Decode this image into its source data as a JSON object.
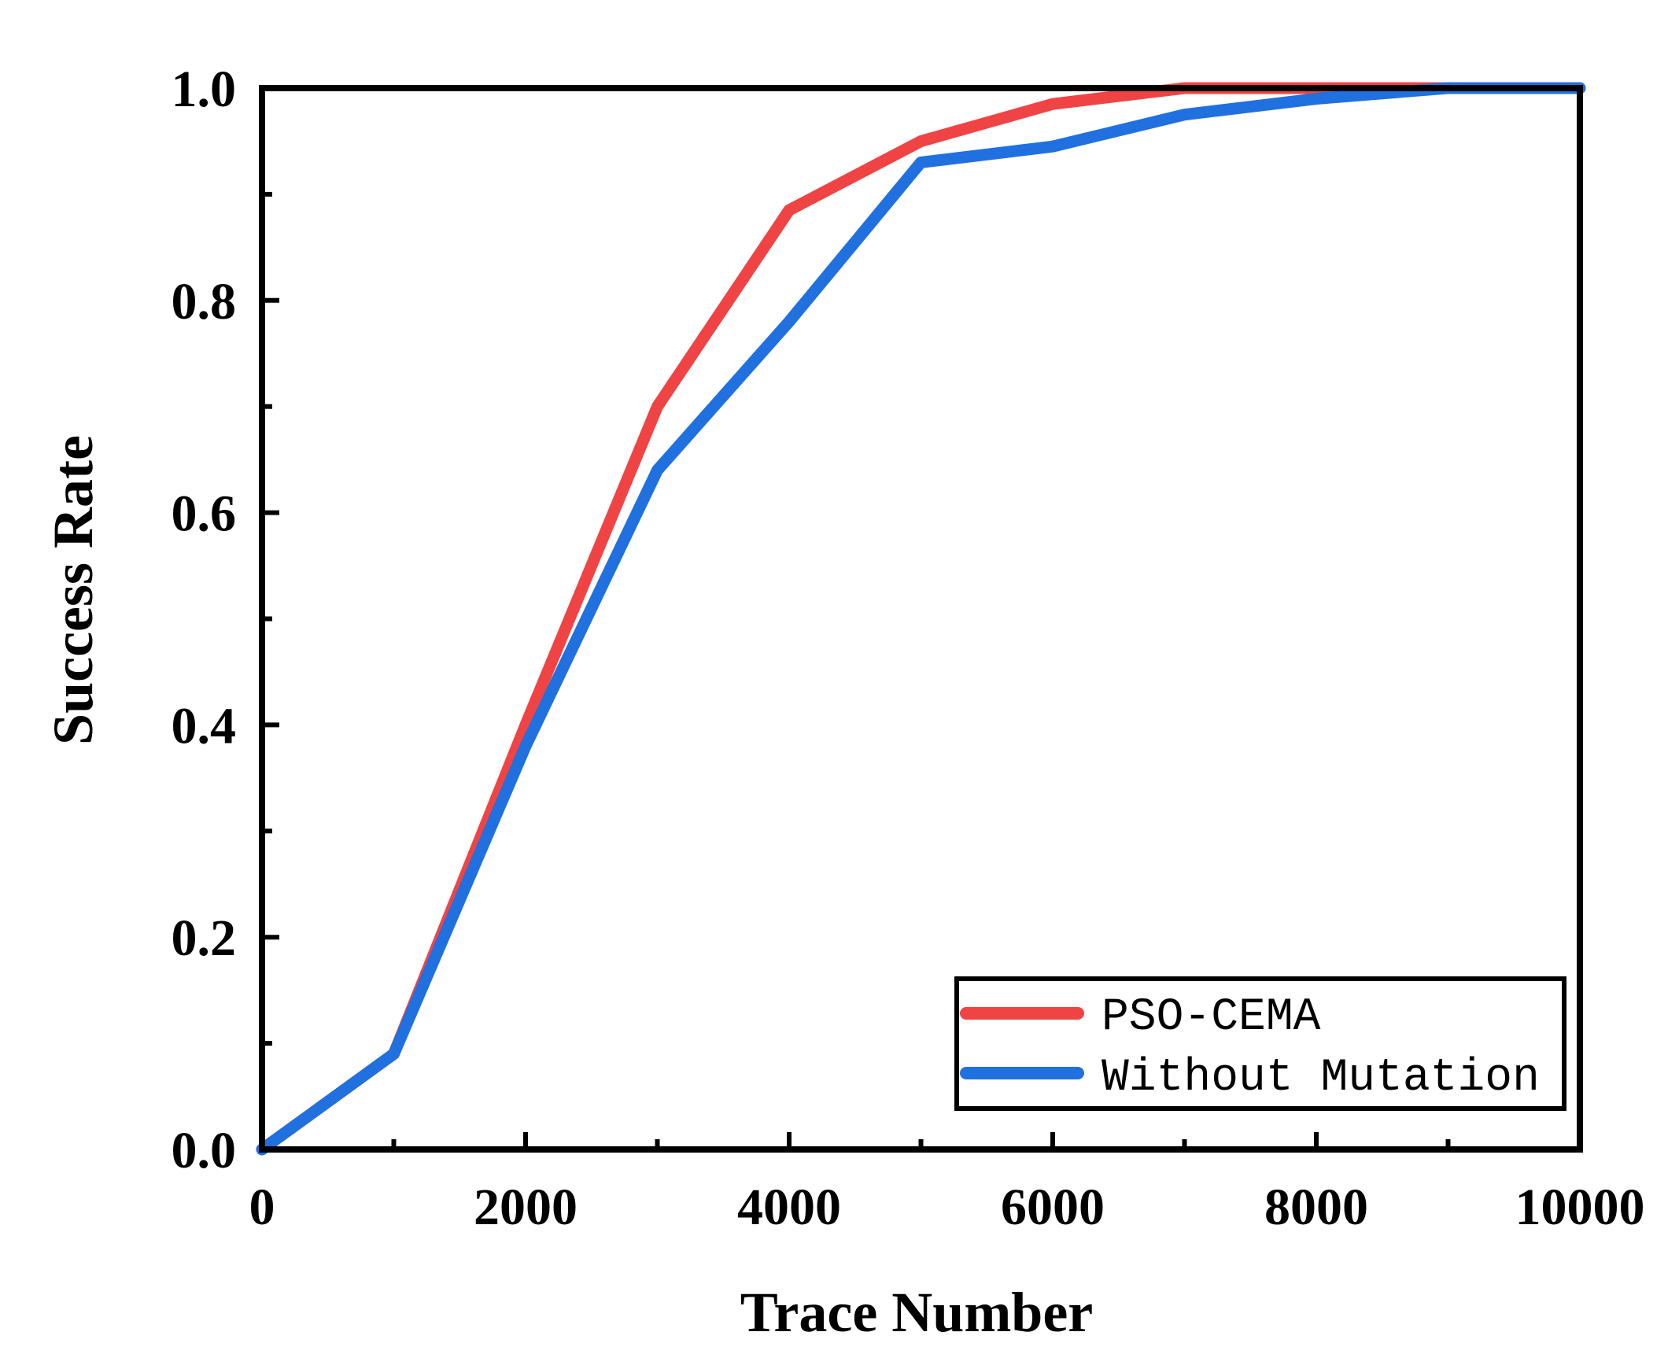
{
  "chart_data": {
    "type": "line",
    "title": "",
    "xlabel": "Trace Number",
    "ylabel": "Success Rate",
    "xlim": [
      0,
      10000
    ],
    "ylim": [
      0,
      1.0
    ],
    "xticks": [
      0,
      2000,
      4000,
      6000,
      8000,
      10000
    ],
    "xtick_labels": [
      "0",
      "2000",
      "4000",
      "6000",
      "8000",
      "10000"
    ],
    "xminor": [
      1000,
      3000,
      5000,
      7000,
      9000
    ],
    "yticks": [
      0,
      0.2,
      0.4,
      0.6,
      0.8,
      1.0
    ],
    "ytick_labels": [
      "0.0",
      "0.2",
      "0.4",
      "0.6",
      "0.8",
      "1.0"
    ],
    "yminor": [
      0.1,
      0.3,
      0.5,
      0.7,
      0.9
    ],
    "grid": false,
    "legend_position": "bottom-right",
    "x": [
      0,
      1000,
      2000,
      3000,
      4000,
      5000,
      6000,
      7000,
      8000,
      9000,
      10000
    ],
    "series": [
      {
        "name": "PSO-CEMA",
        "color": "#f04444",
        "values": [
          0,
          0.09,
          0.4,
          0.7,
          0.885,
          0.95,
          0.985,
          1.0,
          1.0,
          1.0,
          1.0
        ]
      },
      {
        "name": "Without Mutation",
        "color": "#2070e0",
        "values": [
          0,
          0.09,
          0.38,
          0.64,
          0.78,
          0.93,
          0.945,
          0.975,
          0.99,
          1.0,
          1.0
        ]
      }
    ]
  }
}
